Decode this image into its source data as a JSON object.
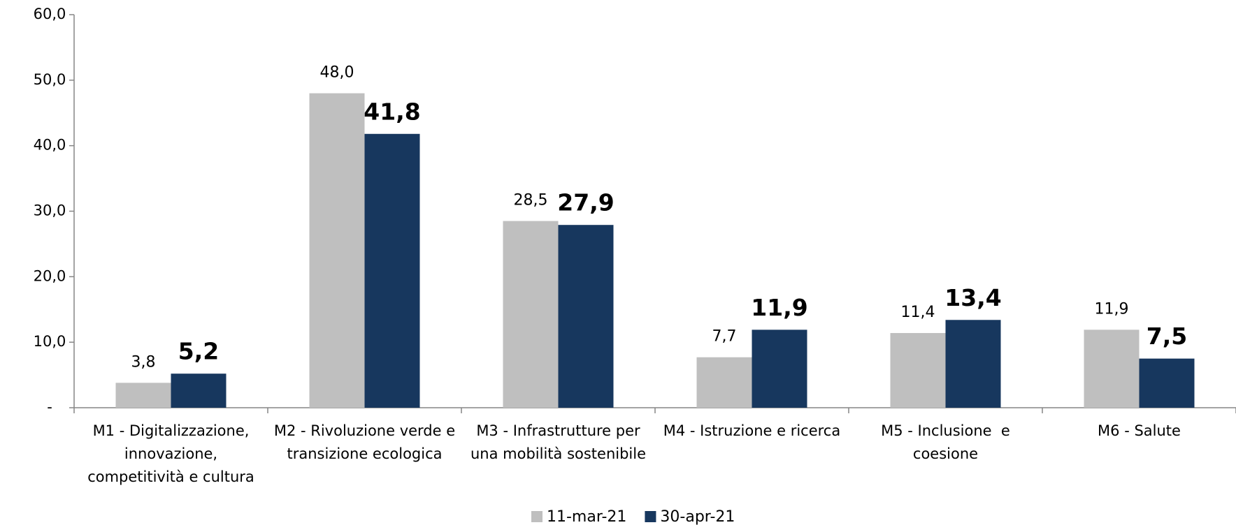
{
  "chart_data": {
    "type": "bar",
    "categories": [
      "M1 - Digitalizzazione, innovazione, competitività e cultura",
      "M2 - Rivoluzione verde e transizione ecologica",
      "M3 - Infrastrutture per una mobilità sostenibile",
      "M4 - Istruzione e ricerca",
      "M5 - Inclusione  e coesione",
      "M6 - Salute"
    ],
    "series": [
      {
        "name": "11-mar-21",
        "color": "#bfbfbf",
        "values": [
          3.8,
          48.0,
          28.5,
          7.7,
          11.4,
          11.9
        ],
        "value_labels": [
          "3,8",
          "48,0",
          "28,5",
          "7,7",
          "11,4",
          "11,9"
        ]
      },
      {
        "name": "30-apr-21",
        "color": "#17375e",
        "values": [
          5.2,
          41.8,
          27.9,
          11.9,
          13.4,
          7.5
        ],
        "value_labels": [
          "5,2",
          "41,8",
          "27,9",
          "11,9",
          "13,4",
          "7,5"
        ]
      }
    ],
    "ylim": [
      0,
      60
    ],
    "yticks": [
      {
        "value": 0,
        "label": "-"
      },
      {
        "value": 10,
        "label": "10,0"
      },
      {
        "value": 20,
        "label": "20,0"
      },
      {
        "value": 30,
        "label": "30,0"
      },
      {
        "value": 40,
        "label": "40,0"
      },
      {
        "value": 50,
        "label": "50,0"
      },
      {
        "value": 60,
        "label": "60,0"
      }
    ],
    "legend": "bottom"
  }
}
